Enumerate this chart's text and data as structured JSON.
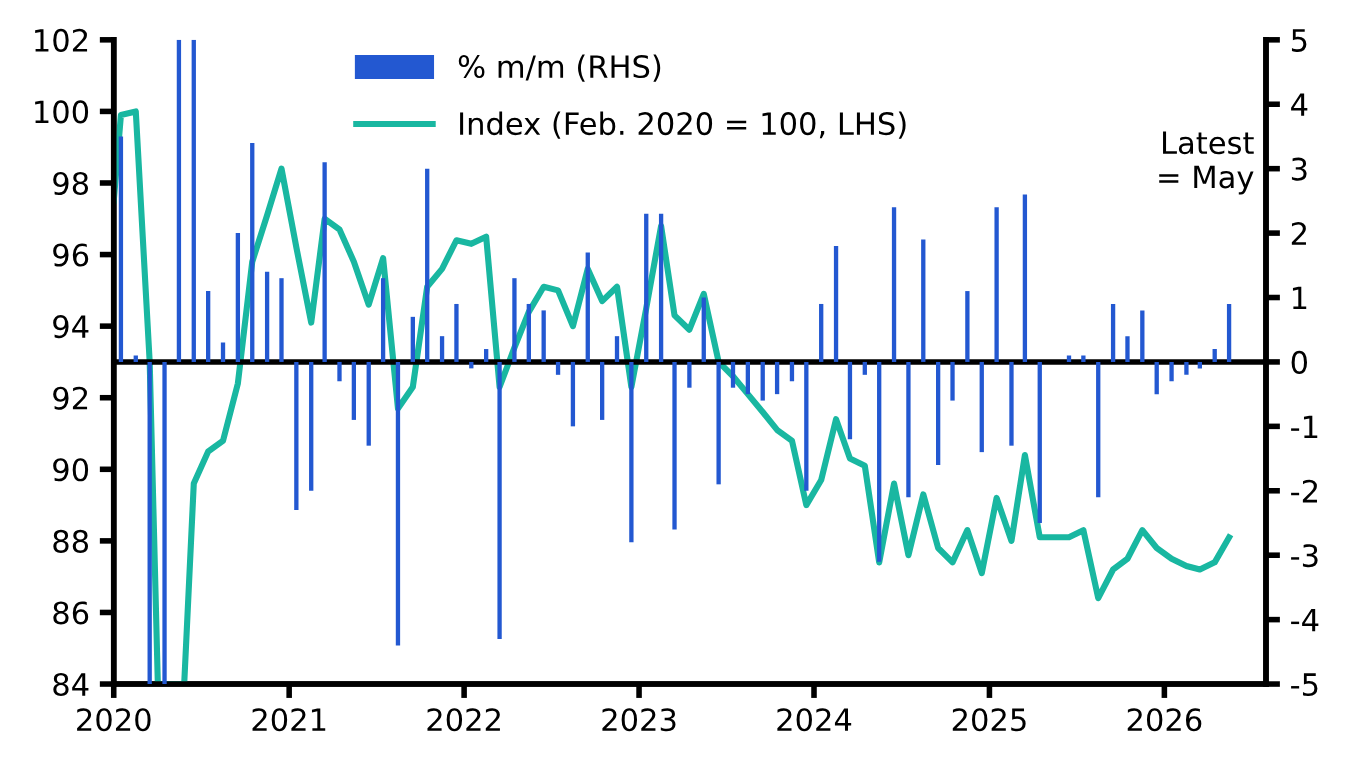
{
  "chart_data": {
    "type": "bar",
    "series": [
      {
        "name": "% m/m (RHS)",
        "axis": "y2",
        "color": "#2358d1",
        "x": [
          "2020-01-16",
          "2020-02-16",
          "2020-03-16",
          "2020-04-16",
          "2020-05-16",
          "2020-06-16",
          "2020-07-16",
          "2020-08-16",
          "2020-09-16",
          "2020-10-16",
          "2020-11-16",
          "2020-12-16",
          "2021-01-16",
          "2021-02-16",
          "2021-03-16",
          "2021-04-16",
          "2021-05-16",
          "2021-06-16",
          "2021-07-16",
          "2021-08-16",
          "2021-09-16",
          "2021-10-16",
          "2021-11-16",
          "2021-12-16",
          "2022-01-16",
          "2022-02-16",
          "2022-03-16",
          "2022-04-16",
          "2022-05-16",
          "2022-06-16",
          "2022-07-16",
          "2022-08-16",
          "2022-09-16",
          "2022-10-16",
          "2022-11-16",
          "2022-12-16",
          "2023-01-16",
          "2023-02-16",
          "2023-03-16",
          "2023-04-16",
          "2023-05-16",
          "2023-06-16",
          "2023-07-16",
          "2023-08-16",
          "2023-09-16",
          "2023-10-16",
          "2023-11-16",
          "2023-12-16",
          "2024-01-16",
          "2024-02-16",
          "2024-03-16",
          "2024-04-16",
          "2024-05-16",
          "2024-06-16",
          "2024-07-16",
          "2024-08-16",
          "2024-09-16",
          "2024-10-16",
          "2024-11-16",
          "2024-12-16",
          "2025-01-16",
          "2025-02-16",
          "2025-03-16",
          "2025-04-16",
          "2025-05-16",
          "2025-06-16",
          "2025-07-16",
          "2025-08-16",
          "2025-09-16",
          "2025-10-16",
          "2025-11-16",
          "2025-12-16",
          "2026-01-16",
          "2026-02-16",
          "2026-03-16",
          "2026-04-16",
          "2026-05-16"
        ],
        "values": [
          3.5,
          0.1,
          -5,
          -5,
          5,
          5,
          1.1,
          0.3,
          2.0,
          3.4,
          1.4,
          1.3,
          -2.3,
          -2.0,
          3.1,
          -0.3,
          -0.9,
          -1.3,
          1.3,
          -4.4,
          0.7,
          3.0,
          0.4,
          0.9,
          -0.1,
          0.2,
          -4.3,
          1.3,
          0.9,
          0.8,
          -0.2,
          -1.0,
          1.7,
          -0.9,
          0.4,
          -2.8,
          2.3,
          2.3,
          -2.6,
          -0.4,
          1.0,
          -1.9,
          -0.4,
          -0.5,
          -0.6,
          -0.5,
          -0.3,
          -2.0,
          0.9,
          1.8,
          -1.2,
          -0.2,
          -3.1,
          2.4,
          -2.1,
          1.9,
          -1.6,
          -0.6,
          1.1,
          -1.4,
          2.4,
          -1.3,
          2.6,
          -2.5,
          0.0,
          0.1,
          0.1,
          -2.1,
          0.9,
          0.4,
          0.8,
          -0.5,
          -0.3,
          -0.2,
          -0.1,
          0.2,
          0.9
        ]
      },
      {
        "name": "Index (Feb. 2020 = 100, LHS)",
        "type": "line",
        "color": "#19b7a1",
        "x": [
          "2020-01-01",
          "2020-01-16",
          "2020-02-16",
          "2020-03-16",
          "2020-04-02",
          "2020-05-27",
          "2020-06-16",
          "2020-07-16",
          "2020-08-16",
          "2020-09-16",
          "2020-10-16",
          "2020-11-16",
          "2020-12-16",
          "2021-01-16",
          "2021-02-16",
          "2021-03-16",
          "2021-04-16",
          "2021-05-16",
          "2021-06-16",
          "2021-07-16",
          "2021-08-16",
          "2021-09-16",
          "2021-10-16",
          "2021-11-16",
          "2021-12-16",
          "2022-01-16",
          "2022-02-16",
          "2022-03-16",
          "2022-04-16",
          "2022-05-16",
          "2022-06-16",
          "2022-07-16",
          "2022-08-16",
          "2022-09-16",
          "2022-10-16",
          "2022-11-16",
          "2022-12-16",
          "2023-01-16",
          "2023-02-16",
          "2023-03-16",
          "2023-04-16",
          "2023-05-16",
          "2023-06-16",
          "2023-07-16",
          "2023-08-16",
          "2023-09-16",
          "2023-10-16",
          "2023-11-16",
          "2023-12-16",
          "2024-01-16",
          "2024-02-16",
          "2024-03-16",
          "2024-04-16",
          "2024-05-16",
          "2024-06-16",
          "2024-07-16",
          "2024-08-16",
          "2024-09-16",
          "2024-10-16",
          "2024-11-16",
          "2024-12-16",
          "2025-01-16",
          "2025-02-16",
          "2025-03-16",
          "2025-04-16",
          "2025-05-16",
          "2025-06-16",
          "2025-07-16",
          "2025-08-16",
          "2025-09-16",
          "2025-10-16",
          "2025-11-16",
          "2025-12-16",
          "2026-01-16",
          "2026-02-16",
          "2026-03-16",
          "2026-04-16",
          "2026-05-16"
        ],
        "values": [
          97.5,
          99.9,
          100.0,
          93.0,
          84,
          84,
          89.6,
          90.5,
          90.8,
          92.4,
          95.8,
          97.1,
          98.4,
          96.2,
          94.1,
          97.0,
          96.7,
          95.8,
          94.6,
          95.9,
          91.7,
          92.3,
          95.1,
          95.6,
          96.4,
          96.3,
          96.5,
          92.3,
          93.4,
          94.4,
          95.1,
          95.0,
          94.0,
          95.6,
          94.7,
          95.1,
          92.3,
          94.5,
          96.8,
          94.3,
          93.9,
          94.9,
          93.0,
          92.6,
          92.1,
          91.6,
          91.1,
          90.8,
          89.0,
          89.7,
          91.4,
          90.3,
          90.1,
          87.4,
          89.6,
          87.6,
          89.3,
          87.8,
          87.4,
          88.3,
          87.1,
          89.2,
          88.0,
          90.4,
          88.1,
          88.1,
          88.1,
          88.3,
          86.4,
          87.2,
          87.5,
          88.3,
          87.8,
          87.5,
          87.3,
          87.2,
          87.4,
          88.1
        ]
      }
    ],
    "xlim": [
      "2020-01-01",
      "2026-08-01"
    ],
    "xticks": [
      {
        "value": "2020-01-01",
        "label": "2020"
      },
      {
        "value": "2021-01-01",
        "label": "2021"
      },
      {
        "value": "2022-01-01",
        "label": "2022"
      },
      {
        "value": "2023-01-01",
        "label": "2023"
      },
      {
        "value": "2024-01-01",
        "label": "2024"
      },
      {
        "value": "2025-01-01",
        "label": "2025"
      },
      {
        "value": "2026-01-01",
        "label": "2026"
      }
    ],
    "ylim": [
      84,
      102
    ],
    "yticks": [
      84,
      86,
      88,
      90,
      92,
      94,
      96,
      98,
      100,
      102
    ],
    "y2lim": [
      -5,
      5
    ],
    "y2ticks": [
      -5,
      -4,
      -3,
      -2,
      -1,
      0,
      1,
      2,
      3,
      4,
      5
    ],
    "ref_lines": [
      {
        "axis": "y2",
        "value": 0,
        "color": "#000000"
      }
    ],
    "annotations": [
      "Latest\n= May"
    ],
    "legend": "top",
    "grid": false
  }
}
